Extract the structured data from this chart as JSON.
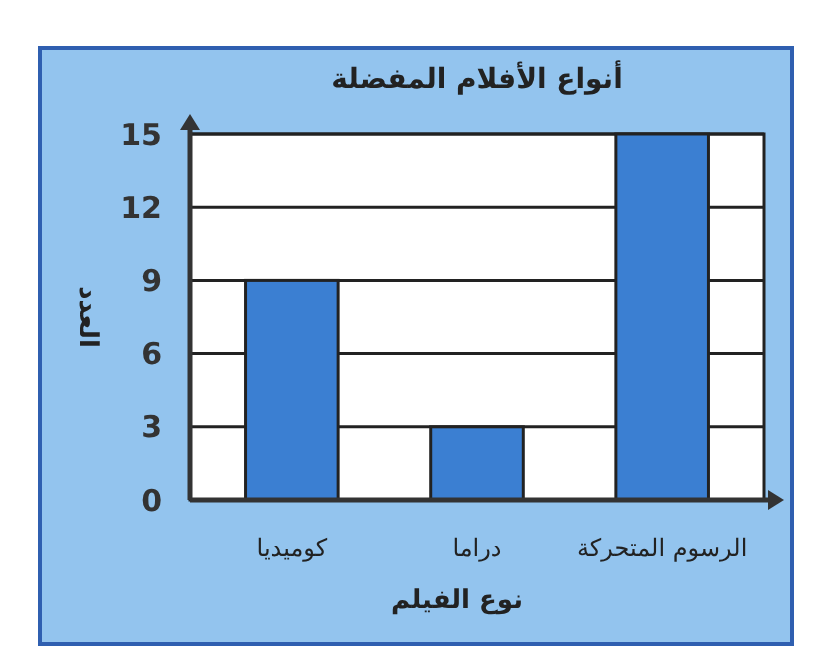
{
  "chart_data": {
    "type": "bar",
    "title": "أنواع الأفلام المفضلة",
    "xlabel": "نوع الفيلم",
    "ylabel": "العدد",
    "categories": [
      "كوميديا",
      "دراما",
      "الرسوم المتحركة"
    ],
    "values": [
      9,
      3,
      15
    ],
    "color": "#3b7fd2",
    "ylim": [
      0,
      15
    ],
    "yticks": [
      0,
      3,
      6,
      9,
      12,
      15
    ],
    "grid": "y"
  }
}
